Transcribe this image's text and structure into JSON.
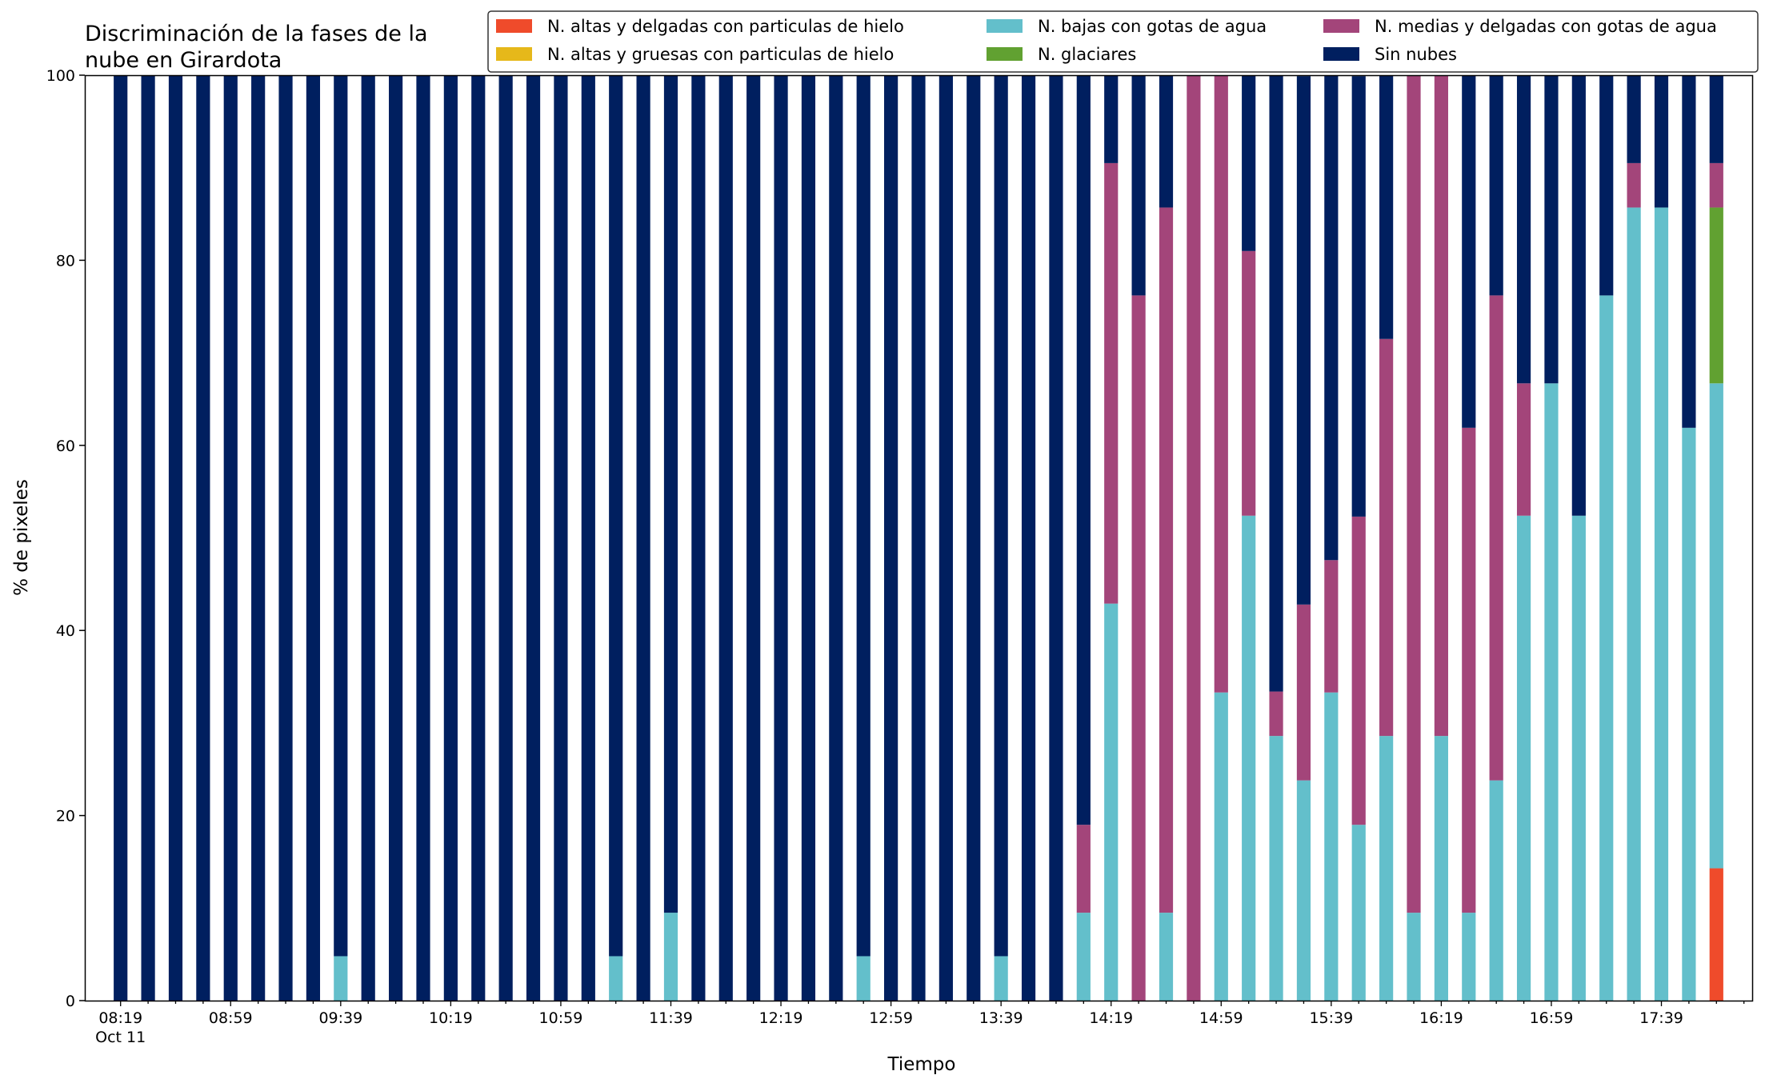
{
  "chart_data": {
    "type": "bar",
    "stacked": true,
    "title_lines": [
      "Discriminación de la fases de la",
      "nube en Girardota"
    ],
    "xlabel": "Tiempo",
    "ylabel": "% de pixeles",
    "ylim": [
      0,
      100
    ],
    "yticks": [
      0,
      20,
      40,
      60,
      80,
      100
    ],
    "grid": false,
    "legend_position": "top-right",
    "x_interval_minutes": 10,
    "x_start": "08:19",
    "date_label": "Oct 11",
    "xtick_labels": [
      "08:19",
      "08:59",
      "09:39",
      "10:19",
      "10:59",
      "11:39",
      "12:19",
      "12:59",
      "13:39",
      "14:19",
      "14:59",
      "15:39",
      "16:19",
      "16:59",
      "17:39"
    ],
    "series": [
      {
        "name": "N. altas y delgadas con particulas de hielo",
        "color": "#EF4B2B",
        "values": [
          0,
          0,
          0,
          0,
          0,
          0,
          0,
          0,
          0,
          0,
          0,
          0,
          0,
          0,
          0,
          0,
          0,
          0,
          0,
          0,
          0,
          0,
          0,
          0,
          0,
          0,
          0,
          0,
          0,
          0,
          0,
          0,
          0,
          0,
          0,
          0,
          0,
          0,
          0,
          0,
          0,
          0,
          0,
          0,
          0,
          0,
          0,
          0,
          0,
          0,
          0,
          0,
          0,
          0,
          0,
          0,
          0,
          0,
          14.3
        ]
      },
      {
        "name": "N. altas y gruesas con particulas de hielo",
        "color": "#E6B81A",
        "values": [
          0,
          0,
          0,
          0,
          0,
          0,
          0,
          0,
          0,
          0,
          0,
          0,
          0,
          0,
          0,
          0,
          0,
          0,
          0,
          0,
          0,
          0,
          0,
          0,
          0,
          0,
          0,
          0,
          0,
          0,
          0,
          0,
          0,
          0,
          0,
          0,
          0,
          0,
          0,
          0,
          0,
          0,
          0,
          0,
          0,
          0,
          0,
          0,
          0,
          0,
          0,
          0,
          0,
          0,
          0,
          0,
          0,
          0,
          0
        ]
      },
      {
        "name": "N. bajas con gotas de agua",
        "color": "#63BFCB",
        "values": [
          0,
          0,
          0,
          0,
          0,
          0,
          0,
          0,
          4.8,
          0,
          0,
          0,
          0,
          0,
          0,
          0,
          0,
          0,
          4.8,
          0,
          9.5,
          0,
          0,
          0,
          0,
          0,
          0,
          4.8,
          0,
          0,
          0,
          0,
          4.8,
          0,
          0,
          9.5,
          42.9,
          0,
          9.5,
          0,
          33.3,
          52.4,
          28.6,
          23.8,
          33.3,
          19.0,
          28.6,
          9.5,
          28.6,
          9.5,
          23.8,
          52.4,
          66.7,
          52.4,
          76.2,
          85.7,
          85.7,
          61.9,
          52.4
        ]
      },
      {
        "name": "N. glaciares",
        "color": "#61A131",
        "values": [
          0,
          0,
          0,
          0,
          0,
          0,
          0,
          0,
          0,
          0,
          0,
          0,
          0,
          0,
          0,
          0,
          0,
          0,
          0,
          0,
          0,
          0,
          0,
          0,
          0,
          0,
          0,
          0,
          0,
          0,
          0,
          0,
          0,
          0,
          0,
          0,
          0,
          0,
          0,
          0,
          0,
          0,
          0,
          0,
          0,
          0,
          0,
          0,
          0,
          0,
          0,
          0,
          0,
          0,
          0,
          0,
          0,
          0,
          19.0
        ]
      },
      {
        "name": "N. medias y delgadas con gotas de agua",
        "color": "#A3457A",
        "values": [
          0,
          0,
          0,
          0,
          0,
          0,
          0,
          0,
          0,
          0,
          0,
          0,
          0,
          0,
          0,
          0,
          0,
          0,
          0,
          0,
          0,
          0,
          0,
          0,
          0,
          0,
          0,
          0,
          0,
          0,
          0,
          0,
          0,
          0,
          0,
          9.5,
          47.6,
          76.2,
          76.2,
          100,
          66.7,
          28.6,
          4.8,
          19.0,
          14.3,
          33.3,
          42.9,
          90.5,
          71.4,
          52.4,
          52.4,
          14.3,
          0,
          0,
          0,
          4.8,
          0,
          0,
          4.8
        ]
      },
      {
        "name": "Sin nubes",
        "color": "#001F5F",
        "values": [
          100,
          100,
          100,
          100,
          100,
          100,
          100,
          100,
          95.2,
          100,
          100,
          100,
          100,
          100,
          100,
          100,
          100,
          100,
          95.2,
          100,
          90.5,
          100,
          100,
          100,
          100,
          100,
          100,
          95.2,
          100,
          100,
          100,
          100,
          95.2,
          100,
          100,
          81.0,
          9.5,
          23.8,
          14.3,
          0,
          0,
          19.0,
          66.7,
          57.1,
          52.4,
          47.6,
          28.6,
          0,
          0,
          38.1,
          23.8,
          33.3,
          33.3,
          47.6,
          23.8,
          9.5,
          14.3,
          38.1,
          9.5
        ]
      }
    ]
  }
}
